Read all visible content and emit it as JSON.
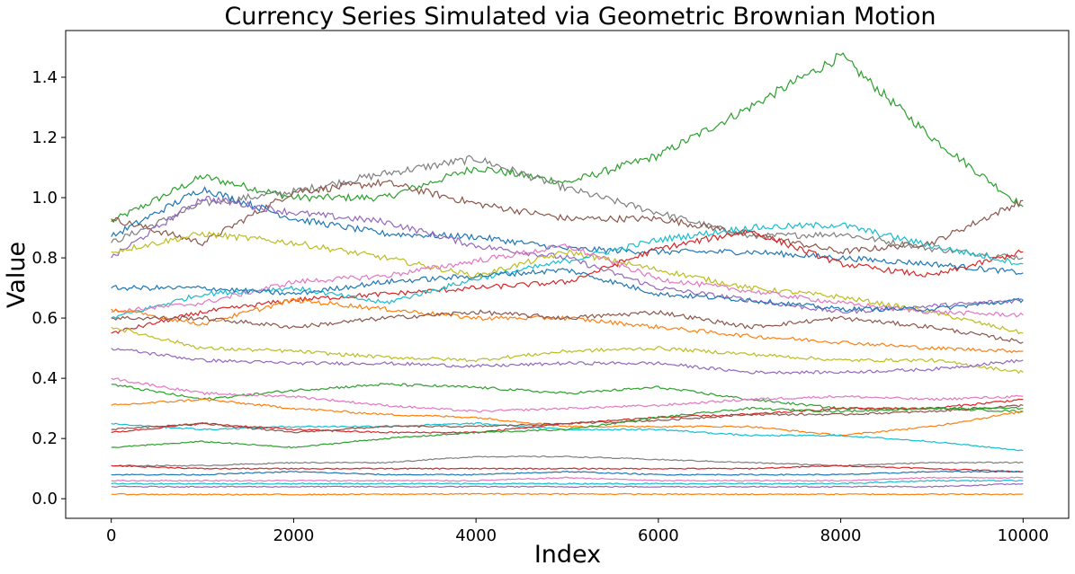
{
  "chart_data": {
    "type": "line",
    "title": "Currency Series Simulated via Geometric Brownian Motion",
    "xlabel": "Index",
    "ylabel": "Value",
    "xlim": [
      -500,
      10500
    ],
    "ylim": [
      -0.065,
      1.555
    ],
    "x_ticks": [
      0,
      2000,
      4000,
      6000,
      8000,
      10000
    ],
    "x_tick_labels": [
      "0",
      "2000",
      "4000",
      "6000",
      "8000",
      "10000"
    ],
    "y_ticks": [
      0.0,
      0.2,
      0.4,
      0.6,
      0.8,
      1.0,
      1.2,
      1.4
    ],
    "y_tick_labels": [
      "0.0",
      "0.2",
      "0.4",
      "0.6",
      "0.8",
      "1.0",
      "1.2",
      "1.4"
    ],
    "grid": false,
    "legend": "none",
    "x": [
      0,
      1000,
      2000,
      3000,
      4000,
      5000,
      6000,
      7000,
      8000,
      9000,
      10000
    ],
    "series": [
      {
        "color": "#2ca02c",
        "values": [
          0.92,
          1.07,
          1.0,
          1.0,
          1.1,
          1.05,
          1.14,
          1.3,
          1.47,
          1.2,
          0.97
        ]
      },
      {
        "color": "#7f7f7f",
        "values": [
          0.85,
          0.98,
          1.02,
          1.08,
          1.13,
          1.03,
          0.95,
          0.87,
          0.88,
          0.83,
          0.8
        ]
      },
      {
        "color": "#8c564b",
        "values": [
          0.93,
          0.85,
          1.02,
          1.05,
          0.98,
          0.93,
          0.93,
          0.88,
          0.82,
          0.85,
          0.99
        ]
      },
      {
        "color": "#1f77b4",
        "values": [
          0.87,
          1.03,
          0.93,
          0.88,
          0.87,
          0.83,
          0.82,
          0.82,
          0.8,
          0.78,
          0.75
        ]
      },
      {
        "color": "#9467bd",
        "values": [
          0.8,
          1.0,
          0.95,
          0.92,
          0.84,
          0.8,
          0.7,
          0.66,
          0.62,
          0.64,
          0.66
        ]
      },
      {
        "color": "#bcbd22",
        "values": [
          0.82,
          0.88,
          0.85,
          0.8,
          0.74,
          0.82,
          0.76,
          0.7,
          0.67,
          0.62,
          0.55
        ]
      },
      {
        "color": "#d62728",
        "values": [
          0.55,
          0.62,
          0.66,
          0.68,
          0.7,
          0.72,
          0.83,
          0.89,
          0.78,
          0.74,
          0.82
        ]
      },
      {
        "color": "#17becf",
        "values": [
          0.6,
          0.68,
          0.7,
          0.65,
          0.73,
          0.79,
          0.86,
          0.9,
          0.91,
          0.84,
          0.78
        ]
      },
      {
        "color": "#e377c2",
        "values": [
          0.62,
          0.65,
          0.72,
          0.74,
          0.79,
          0.84,
          0.73,
          0.69,
          0.65,
          0.62,
          0.61
        ]
      },
      {
        "color": "#1f77b4",
        "values": [
          0.7,
          0.7,
          0.68,
          0.72,
          0.74,
          0.76,
          0.68,
          0.66,
          0.63,
          0.63,
          0.66
        ]
      },
      {
        "color": "#ff7f0e",
        "values": [
          0.63,
          0.58,
          0.66,
          0.63,
          0.6,
          0.6,
          0.57,
          0.54,
          0.52,
          0.5,
          0.49
        ]
      },
      {
        "color": "#8c564b",
        "values": [
          0.6,
          0.6,
          0.57,
          0.6,
          0.62,
          0.6,
          0.62,
          0.57,
          0.6,
          0.57,
          0.52
        ]
      },
      {
        "color": "#bcbd22",
        "values": [
          0.57,
          0.5,
          0.49,
          0.47,
          0.46,
          0.49,
          0.5,
          0.48,
          0.46,
          0.46,
          0.42
        ]
      },
      {
        "color": "#9467bd",
        "values": [
          0.5,
          0.46,
          0.45,
          0.45,
          0.44,
          0.45,
          0.45,
          0.42,
          0.42,
          0.43,
          0.46
        ]
      },
      {
        "color": "#2ca02c",
        "values": [
          0.38,
          0.33,
          0.36,
          0.38,
          0.37,
          0.35,
          0.37,
          0.33,
          0.3,
          0.3,
          0.29
        ]
      },
      {
        "color": "#e377c2",
        "values": [
          0.4,
          0.35,
          0.34,
          0.31,
          0.29,
          0.3,
          0.31,
          0.33,
          0.34,
          0.33,
          0.34
        ]
      },
      {
        "color": "#ff7f0e",
        "values": [
          0.31,
          0.33,
          0.3,
          0.28,
          0.27,
          0.24,
          0.24,
          0.24,
          0.21,
          0.24,
          0.29
        ]
      },
      {
        "color": "#17becf",
        "values": [
          0.25,
          0.23,
          0.24,
          0.24,
          0.25,
          0.23,
          0.23,
          0.21,
          0.21,
          0.19,
          0.16
        ]
      },
      {
        "color": "#d62728",
        "values": [
          0.22,
          0.25,
          0.23,
          0.22,
          0.22,
          0.25,
          0.27,
          0.28,
          0.3,
          0.3,
          0.33
        ]
      },
      {
        "color": "#8c564b",
        "values": [
          0.23,
          0.25,
          0.22,
          0.24,
          0.24,
          0.25,
          0.26,
          0.28,
          0.28,
          0.29,
          0.31
        ]
      },
      {
        "color": "#2ca02c",
        "values": [
          0.17,
          0.19,
          0.17,
          0.2,
          0.22,
          0.23,
          0.27,
          0.3,
          0.29,
          0.3,
          0.3
        ]
      },
      {
        "color": "#7f7f7f",
        "values": [
          0.11,
          0.11,
          0.12,
          0.12,
          0.14,
          0.14,
          0.13,
          0.12,
          0.11,
          0.12,
          0.12
        ]
      },
      {
        "color": "#d62728",
        "values": [
          0.11,
          0.1,
          0.1,
          0.1,
          0.1,
          0.1,
          0.1,
          0.1,
          0.11,
          0.1,
          0.09
        ]
      },
      {
        "color": "#1f77b4",
        "values": [
          0.08,
          0.08,
          0.09,
          0.08,
          0.08,
          0.09,
          0.08,
          0.08,
          0.08,
          0.09,
          0.09
        ]
      },
      {
        "color": "#e377c2",
        "values": [
          0.06,
          0.06,
          0.06,
          0.06,
          0.06,
          0.07,
          0.06,
          0.06,
          0.06,
          0.07,
          0.07
        ]
      },
      {
        "color": "#17becf",
        "values": [
          0.05,
          0.05,
          0.05,
          0.05,
          0.05,
          0.05,
          0.05,
          0.05,
          0.05,
          0.06,
          0.06
        ]
      },
      {
        "color": "#9467bd",
        "values": [
          0.04,
          0.04,
          0.04,
          0.04,
          0.04,
          0.04,
          0.04,
          0.04,
          0.04,
          0.04,
          0.05
        ]
      },
      {
        "color": "#ff7f0e",
        "values": [
          0.015,
          0.014,
          0.014,
          0.015,
          0.016,
          0.016,
          0.015,
          0.015,
          0.015,
          0.015,
          0.015
        ]
      }
    ]
  }
}
